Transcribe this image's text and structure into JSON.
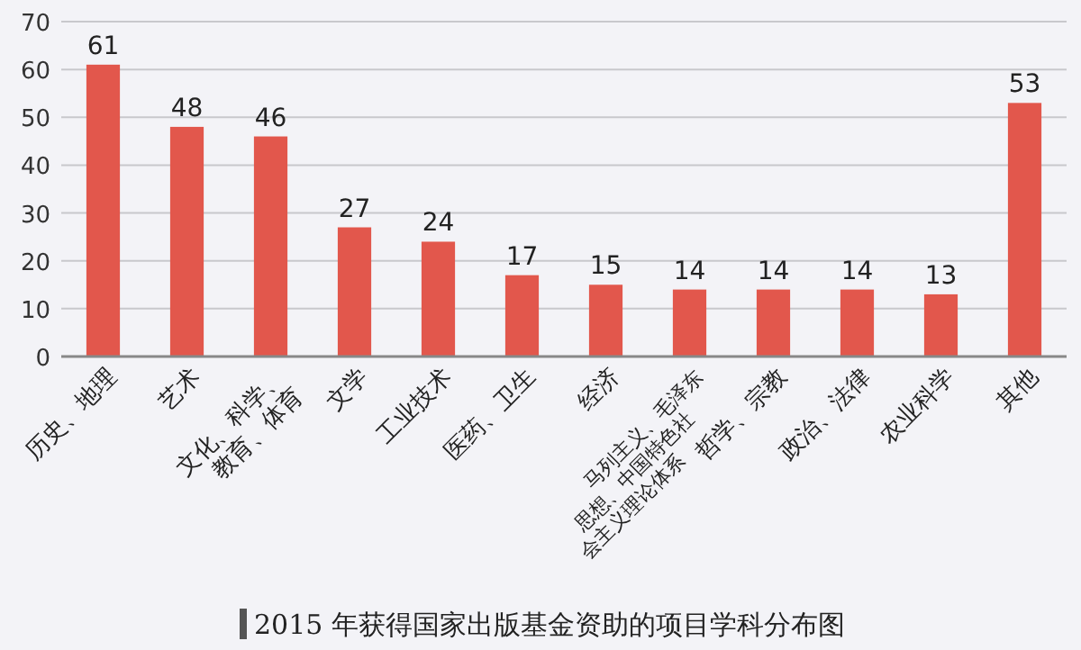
{
  "chart_data": {
    "type": "bar",
    "title": "2015 年获得国家出版基金资助的项目学科分布图",
    "categories": [
      "历史、地理",
      "艺术",
      "文化、科学、教育、体育",
      "文学",
      "工业技术",
      "医药、卫生",
      "经济",
      "马列主义、毛泽东思想、中国特色社会主义理论体系",
      "哲学、宗教",
      "政治、法律",
      "农业科学",
      "其他"
    ],
    "values": [
      61,
      48,
      46,
      27,
      24,
      17,
      15,
      14,
      14,
      14,
      13,
      53
    ],
    "color": "#e2574c",
    "ylim": [
      0,
      70
    ],
    "yticks": [
      0,
      10,
      20,
      30,
      40,
      50,
      60,
      70
    ],
    "grid": "y",
    "data_labels": true
  }
}
